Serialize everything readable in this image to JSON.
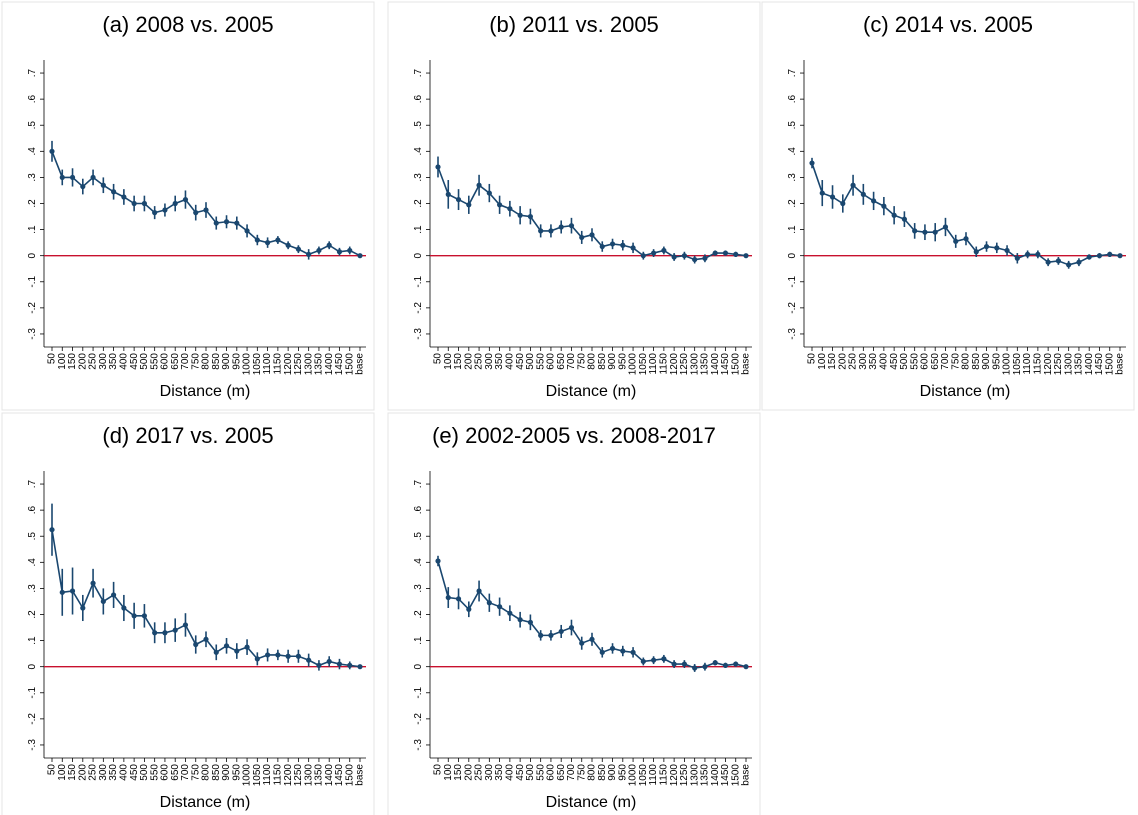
{
  "chart_data": [
    {
      "type": "line",
      "title": "(a) 2008 vs. 2005",
      "x_label": "Distance (m)",
      "categories": [
        "50",
        "100",
        "150",
        "200",
        "250",
        "300",
        "350",
        "400",
        "450",
        "500",
        "550",
        "600",
        "650",
        "700",
        "750",
        "800",
        "850",
        "900",
        "950",
        "1000",
        "1050",
        "1100",
        "1150",
        "1200",
        "1250",
        "1300",
        "1350",
        "1400",
        "1450",
        "1500",
        "base"
      ],
      "series": [
        {
          "color": "#1a476f",
          "values": [
            0.4,
            0.3,
            0.3,
            0.265,
            0.3,
            0.27,
            0.245,
            0.225,
            0.2,
            0.2,
            0.165,
            0.175,
            0.2,
            0.215,
            0.165,
            0.175,
            0.125,
            0.13,
            0.125,
            0.095,
            0.06,
            0.05,
            0.06,
            0.04,
            0.025,
            0.005,
            0.02,
            0.04,
            0.015,
            0.02,
            0
          ],
          "errors": [
            0.04,
            0.03,
            0.035,
            0.03,
            0.03,
            0.03,
            0.03,
            0.03,
            0.03,
            0.03,
            0.025,
            0.025,
            0.03,
            0.035,
            0.03,
            0.03,
            0.025,
            0.025,
            0.025,
            0.025,
            0.02,
            0.02,
            0.015,
            0.015,
            0.015,
            0.02,
            0.015,
            0.015,
            0.015,
            0.015,
            0
          ]
        }
      ],
      "ylim": [
        -0.35,
        0.75
      ],
      "yticks": [
        {
          "value": 0.7,
          "label": ".7"
        },
        {
          "value": 0.6,
          "label": ".6"
        },
        {
          "value": 0.5,
          "label": ".5"
        },
        {
          "value": 0.4,
          "label": ".4"
        },
        {
          "value": 0.3,
          "label": ".3"
        },
        {
          "value": 0.2,
          "label": ".2"
        },
        {
          "value": 0.1,
          "label": ".1"
        },
        0,
        {
          "value": -0.1,
          "label": "-.1"
        },
        {
          "value": -0.2,
          "label": "-.2"
        },
        {
          "value": -0.3,
          "label": "-.3"
        }
      ],
      "reference_line": {
        "value": 0,
        "color": "#c8102e"
      }
    },
    {
      "type": "line",
      "title": "(b) 2011 vs. 2005",
      "x_label": "Distance (m)",
      "categories": [
        "50",
        "100",
        "150",
        "200",
        "250",
        "300",
        "350",
        "400",
        "450",
        "500",
        "550",
        "600",
        "650",
        "700",
        "750",
        "800",
        "850",
        "900",
        "950",
        "1000",
        "1050",
        "1100",
        "1150",
        "1200",
        "1250",
        "1300",
        "1350",
        "1400",
        "1450",
        "1500",
        "base"
      ],
      "series": [
        {
          "color": "#1a476f",
          "values": [
            0.34,
            0.235,
            0.215,
            0.195,
            0.27,
            0.24,
            0.195,
            0.18,
            0.155,
            0.15,
            0.095,
            0.095,
            0.11,
            0.115,
            0.07,
            0.08,
            0.035,
            0.045,
            0.04,
            0.03,
            0.0,
            0.01,
            0.02,
            -0.005,
            0.0,
            -0.015,
            -0.01,
            0.01,
            0.01,
            0.005,
            0
          ],
          "errors": [
            0.04,
            0.055,
            0.04,
            0.035,
            0.04,
            0.035,
            0.035,
            0.03,
            0.035,
            0.03,
            0.025,
            0.025,
            0.025,
            0.03,
            0.025,
            0.025,
            0.02,
            0.02,
            0.02,
            0.02,
            0.015,
            0.015,
            0.015,
            0.015,
            0.015,
            0.015,
            0.015,
            0.01,
            0.01,
            0.01,
            0
          ]
        }
      ],
      "ylim": [
        -0.35,
        0.75
      ],
      "yticks": [
        {
          "value": 0.7,
          "label": ".7"
        },
        {
          "value": 0.6,
          "label": ".6"
        },
        {
          "value": 0.5,
          "label": ".5"
        },
        {
          "value": 0.4,
          "label": ".4"
        },
        {
          "value": 0.3,
          "label": ".3"
        },
        {
          "value": 0.2,
          "label": ".2"
        },
        {
          "value": 0.1,
          "label": ".1"
        },
        0,
        {
          "value": -0.1,
          "label": "-.1"
        },
        {
          "value": -0.2,
          "label": "-.2"
        },
        {
          "value": -0.3,
          "label": "-.3"
        }
      ],
      "reference_line": {
        "value": 0,
        "color": "#c8102e"
      }
    },
    {
      "type": "line",
      "title": "(c) 2014 vs. 2005",
      "x_label": "Distance (m)",
      "categories": [
        "50",
        "100",
        "150",
        "200",
        "250",
        "300",
        "350",
        "400",
        "450",
        "500",
        "550",
        "600",
        "650",
        "700",
        "750",
        "800",
        "850",
        "900",
        "950",
        "1000",
        "1050",
        "1100",
        "1150",
        "1200",
        "1250",
        "1300",
        "1350",
        "1400",
        "1450",
        "1500",
        "base"
      ],
      "series": [
        {
          "color": "#1a476f",
          "values": [
            0.355,
            0.24,
            0.225,
            0.2,
            0.27,
            0.235,
            0.21,
            0.19,
            0.155,
            0.14,
            0.095,
            0.09,
            0.09,
            0.11,
            0.055,
            0.065,
            0.015,
            0.035,
            0.03,
            0.02,
            -0.01,
            0.005,
            0.005,
            -0.025,
            -0.02,
            -0.035,
            -0.025,
            -0.005,
            0.0,
            0.005,
            0
          ],
          "errors": [
            0.02,
            0.05,
            0.045,
            0.035,
            0.04,
            0.04,
            0.035,
            0.035,
            0.035,
            0.03,
            0.03,
            0.03,
            0.035,
            0.035,
            0.025,
            0.025,
            0.02,
            0.02,
            0.02,
            0.02,
            0.02,
            0.015,
            0.015,
            0.015,
            0.015,
            0.015,
            0.015,
            0.01,
            0.01,
            0.01,
            0
          ]
        }
      ],
      "ylim": [
        -0.35,
        0.75
      ],
      "yticks": [
        {
          "value": 0.7,
          "label": ".7"
        },
        {
          "value": 0.6,
          "label": ".6"
        },
        {
          "value": 0.5,
          "label": ".5"
        },
        {
          "value": 0.4,
          "label": ".4"
        },
        {
          "value": 0.3,
          "label": ".3"
        },
        {
          "value": 0.2,
          "label": ".2"
        },
        {
          "value": 0.1,
          "label": ".1"
        },
        0,
        {
          "value": -0.1,
          "label": "-.1"
        },
        {
          "value": -0.2,
          "label": "-.2"
        },
        {
          "value": -0.3,
          "label": "-.3"
        }
      ],
      "reference_line": {
        "value": 0,
        "color": "#c8102e"
      }
    },
    {
      "type": "line",
      "title": "(d) 2017 vs. 2005",
      "x_label": "Distance (m)",
      "categories": [
        "50",
        "100",
        "150",
        "200",
        "250",
        "300",
        "350",
        "400",
        "450",
        "500",
        "550",
        "600",
        "650",
        "700",
        "750",
        "800",
        "850",
        "900",
        "950",
        "1000",
        "1050",
        "1100",
        "1150",
        "1200",
        "1250",
        "1300",
        "1350",
        "1400",
        "1450",
        "1500",
        "base"
      ],
      "series": [
        {
          "color": "#1a476f",
          "values": [
            0.525,
            0.285,
            0.29,
            0.225,
            0.32,
            0.25,
            0.275,
            0.225,
            0.195,
            0.195,
            0.13,
            0.13,
            0.14,
            0.16,
            0.085,
            0.105,
            0.055,
            0.08,
            0.06,
            0.075,
            0.03,
            0.045,
            0.045,
            0.04,
            0.04,
            0.025,
            0.005,
            0.02,
            0.01,
            0.005,
            0
          ],
          "errors": [
            0.1,
            0.09,
            0.09,
            0.05,
            0.055,
            0.05,
            0.05,
            0.05,
            0.05,
            0.045,
            0.04,
            0.04,
            0.045,
            0.045,
            0.035,
            0.03,
            0.03,
            0.03,
            0.03,
            0.03,
            0.025,
            0.025,
            0.02,
            0.025,
            0.025,
            0.025,
            0.02,
            0.02,
            0.02,
            0.015,
            0
          ]
        }
      ],
      "ylim": [
        -0.35,
        0.75
      ],
      "yticks": [
        {
          "value": 0.7,
          "label": ".7"
        },
        {
          "value": 0.6,
          "label": ".6"
        },
        {
          "value": 0.5,
          "label": ".5"
        },
        {
          "value": 0.4,
          "label": ".4"
        },
        {
          "value": 0.3,
          "label": ".3"
        },
        {
          "value": 0.2,
          "label": ".2"
        },
        {
          "value": 0.1,
          "label": ".1"
        },
        0,
        {
          "value": -0.1,
          "label": "-.1"
        },
        {
          "value": -0.2,
          "label": "-.2"
        },
        {
          "value": -0.3,
          "label": "-.3"
        }
      ],
      "reference_line": {
        "value": 0,
        "color": "#c8102e"
      }
    },
    {
      "type": "line",
      "title": "(e) 2002-2005 vs. 2008-2017",
      "x_label": "Distance (m)",
      "categories": [
        "50",
        "100",
        "150",
        "200",
        "250",
        "300",
        "350",
        "400",
        "450",
        "500",
        "550",
        "600",
        "650",
        "700",
        "750",
        "800",
        "850",
        "900",
        "950",
        "1000",
        "1050",
        "1100",
        "1150",
        "1200",
        "1250",
        "1300",
        "1350",
        "1400",
        "1450",
        "1500",
        "base"
      ],
      "series": [
        {
          "color": "#1a476f",
          "values": [
            0.405,
            0.265,
            0.26,
            0.22,
            0.29,
            0.245,
            0.23,
            0.205,
            0.18,
            0.17,
            0.12,
            0.12,
            0.135,
            0.15,
            0.09,
            0.105,
            0.055,
            0.07,
            0.06,
            0.055,
            0.02,
            0.025,
            0.03,
            0.01,
            0.01,
            -0.005,
            0.0,
            0.015,
            0.005,
            0.01,
            0
          ],
          "errors": [
            0.02,
            0.04,
            0.04,
            0.03,
            0.04,
            0.035,
            0.035,
            0.03,
            0.03,
            0.03,
            0.02,
            0.02,
            0.025,
            0.03,
            0.025,
            0.025,
            0.02,
            0.02,
            0.02,
            0.02,
            0.015,
            0.015,
            0.015,
            0.015,
            0.015,
            0.015,
            0.015,
            0.01,
            0.01,
            0.01,
            0
          ]
        }
      ],
      "ylim": [
        -0.35,
        0.75
      ],
      "yticks": [
        {
          "value": 0.7,
          "label": ".7"
        },
        {
          "value": 0.6,
          "label": ".6"
        },
        {
          "value": 0.5,
          "label": ".5"
        },
        {
          "value": 0.4,
          "label": ".4"
        },
        {
          "value": 0.3,
          "label": ".3"
        },
        {
          "value": 0.2,
          "label": ".2"
        },
        {
          "value": 0.1,
          "label": ".1"
        },
        0,
        {
          "value": -0.1,
          "label": "-.1"
        },
        {
          "value": -0.2,
          "label": "-.2"
        },
        {
          "value": -0.3,
          "label": "-.3"
        }
      ],
      "reference_line": {
        "value": 0,
        "color": "#c8102e"
      }
    }
  ]
}
